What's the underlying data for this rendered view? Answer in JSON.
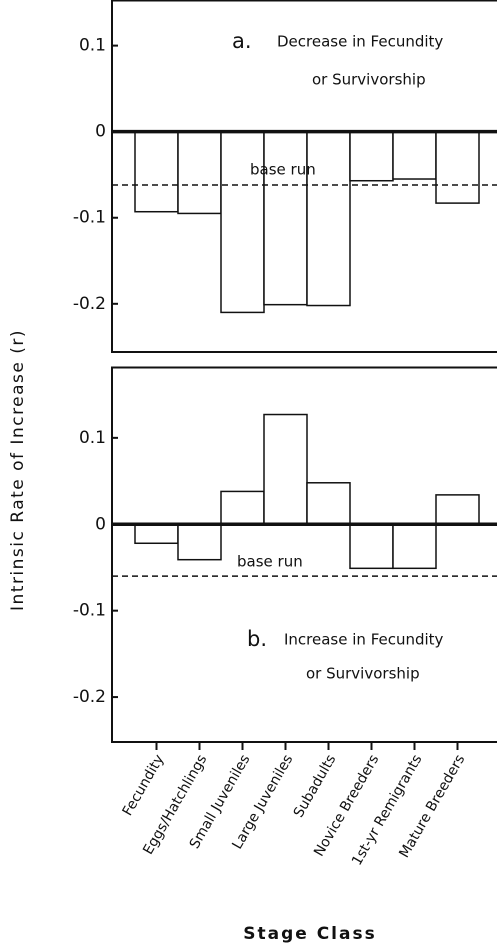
{
  "chart_data": [
    {
      "type": "bar",
      "label": "a.",
      "title": "Decrease in Fecundity",
      "subtitle": "or Survivorship",
      "ylabel": "Intrinsic Rate of Increase (r)",
      "values": [
        -0.093,
        -0.095,
        -0.21,
        -0.201,
        -0.202,
        -0.057,
        -0.055,
        -0.083
      ],
      "reference_line": {
        "value": -0.062,
        "label": "base run"
      },
      "ylim": [
        -0.256,
        0.153
      ],
      "yticks": [
        0.1,
        0,
        -0.1,
        -0.2
      ]
    },
    {
      "type": "bar",
      "label": "b.",
      "title": "Increase in Fecundity",
      "subtitle": "or Survivorship",
      "xlabel": "Stage Class",
      "categories": [
        "Fecundity",
        "Eggs/Hatchlings",
        "Small Juveniles",
        "Large Juveniles",
        "Subadults",
        "Novice Breeders",
        "1st-yr  Remigrants",
        "Mature Breeders"
      ],
      "values": [
        -0.022,
        -0.041,
        0.038,
        0.127,
        0.048,
        -0.051,
        -0.051,
        0.034
      ],
      "reference_line": {
        "value": -0.06,
        "label": "base run"
      },
      "ylim": [
        -0.252,
        0.182
      ],
      "yticks": [
        0.1,
        0,
        -0.1,
        -0.2
      ]
    }
  ]
}
